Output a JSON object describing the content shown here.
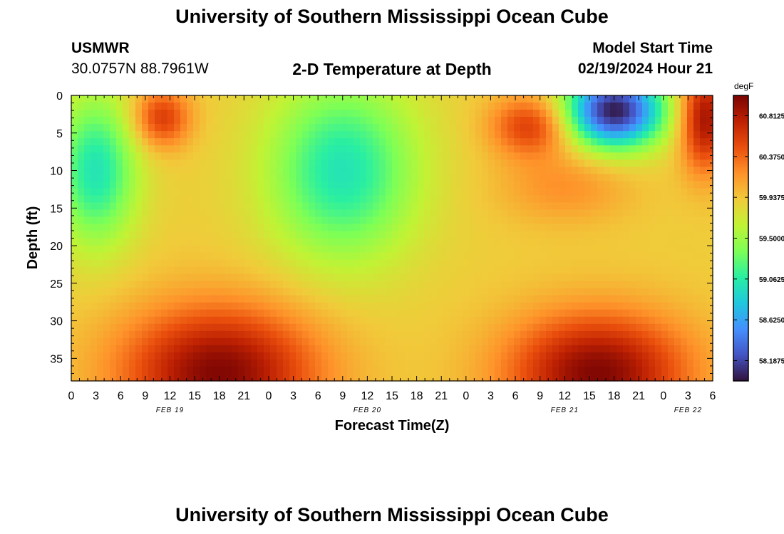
{
  "header": {
    "title": "University of Southern Mississippi Ocean Cube",
    "station": "USMWR",
    "coords": "30.0757N  88.7961W",
    "subtitle": "2-D Temperature at Depth",
    "start_label": "Model Start Time",
    "start_value": "02/19/2024 Hour 21"
  },
  "footer": {
    "title": "University of Southern Mississippi Ocean Cube"
  },
  "chart_data": {
    "type": "heatmap",
    "xlabel": "Forecast Time(Z)",
    "ylabel": "Depth (ft)",
    "xlim": [
      0,
      78
    ],
    "ylim": [
      0,
      38
    ],
    "y_inverted": true,
    "x_tick_labels": [
      "0",
      "3",
      "6",
      "9",
      "12",
      "15",
      "18",
      "21",
      "0",
      "3",
      "6",
      "9",
      "12",
      "15",
      "18",
      "21",
      "0",
      "3",
      "6",
      "9",
      "12",
      "15",
      "18",
      "21",
      "0",
      "3",
      "6"
    ],
    "y_ticks": [
      0,
      5,
      10,
      15,
      20,
      25,
      30,
      35
    ],
    "date_labels": [
      {
        "label": "FEB 19",
        "hour": 12
      },
      {
        "label": "FEB 20",
        "hour": 36
      },
      {
        "label": "FEB 21",
        "hour": 60
      },
      {
        "label": "FEB 22",
        "hour": 75
      }
    ],
    "colorbar": {
      "units": "degF",
      "min": 57.97,
      "max": 61.03,
      "tick_labels": [
        "60.8125",
        "60.3750",
        "59.9375",
        "59.5000",
        "59.0625",
        "58.6250",
        "58.1875"
      ],
      "tick_values": [
        60.8125,
        60.375,
        59.9375,
        59.5,
        59.0625,
        58.625,
        58.1875
      ],
      "palette": [
        "#30123b",
        "#4454c4",
        "#4490fe",
        "#1fc8de",
        "#29efa2",
        "#7dff56",
        "#c1f334",
        "#f1ca3a",
        "#fe922a",
        "#ea4f0d",
        "#be2102",
        "#7a0403"
      ]
    },
    "field_features": [
      {
        "hour": 11,
        "depth": 3,
        "value": 60.6,
        "sx": 3.5,
        "sy": 4
      },
      {
        "hour": 18,
        "depth": 37,
        "value": 61.0,
        "sx": 12,
        "sy": 9
      },
      {
        "hour": 56,
        "depth": 4,
        "value": 60.6,
        "sx": 5,
        "sy": 4
      },
      {
        "hour": 60,
        "depth": 12,
        "value": 60.2,
        "sx": 8,
        "sy": 5
      },
      {
        "hour": 64,
        "depth": 37,
        "value": 61.0,
        "sx": 11,
        "sy": 8
      },
      {
        "hour": 77,
        "depth": 3,
        "value": 60.9,
        "sx": 3,
        "sy": 7
      },
      {
        "hour": 66,
        "depth": 2,
        "value": 58.0,
        "sx": 6,
        "sy": 5
      },
      {
        "hour": 3,
        "depth": 10,
        "value": 59.0,
        "sx": 5,
        "sy": 10
      },
      {
        "hour": 33,
        "depth": 10,
        "value": 59.0,
        "sx": 9,
        "sy": 12
      }
    ],
    "background_value": 59.9
  }
}
